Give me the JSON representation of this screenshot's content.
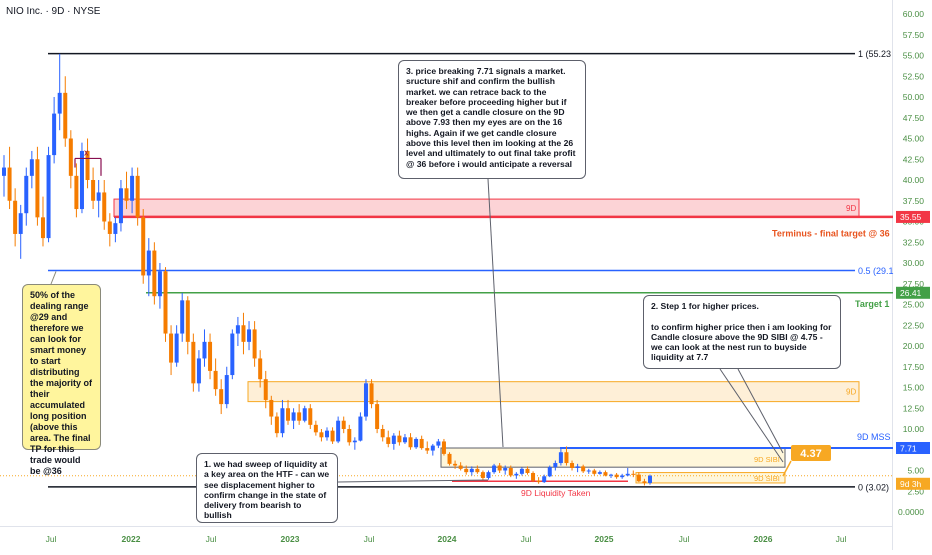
{
  "symbol": "NIO Inc. · 9D · NYSE",
  "colors": {
    "up": "#2962ff",
    "down": "#f57c00",
    "fvg_red": "#f23645",
    "fvg_orange": "#f7a823",
    "target_green": "#43a047",
    "blue_level": "#2962ff",
    "mss_blue": "#2962ff",
    "price_badge": "#f7a823"
  },
  "axis": {
    "price_ticks": [
      "60.00",
      "57.50",
      "55.00",
      "52.50",
      "50.00",
      "47.50",
      "45.00",
      "42.50",
      "40.00",
      "37.50",
      "35.00",
      "32.50",
      "30.00",
      "27.50",
      "25.00",
      "22.50",
      "20.00",
      "17.50",
      "15.00",
      "12.50",
      "10.00",
      "7.50",
      "5.00",
      "2.50",
      "0.0000"
    ],
    "time_ticks": [
      "Jul",
      "2022",
      "Jul",
      "2023",
      "Jul",
      "2024",
      "Jul",
      "2025",
      "Jul",
      "2026",
      "Jul"
    ]
  },
  "levels": {
    "fib_1": "1 (55.23",
    "fib_05": "0.5 (29.1",
    "fib_0": "0 (3.02)",
    "terminus_label": "Terminus - final target @ 36",
    "terminus_price": "35.55",
    "target1_label": "Target 1",
    "target1_price": "26.41",
    "mss_label": "9D MSS",
    "mss_price": "7.71",
    "current_price_badge": "4.37",
    "current_price_scale": "9d 3h",
    "fvg_red_label": "9D",
    "fvg_orange_label": "9D",
    "sibi_label_1": "9D SIBI",
    "sibi_label_2": "9D SIBI",
    "liquidity_label": "9D Liquidity Taken",
    "x_marker": "x"
  },
  "notes": {
    "note1": "1. we had sweep of liquidity at a key area on the HTF - can we see displacement higher to confirm change in the state of delivery from bearish to bullish",
    "note2": "2. Step 1 for higher prices.\n\nto confirm higher price then i am looking for Candle closure above the 9D SIBI @ 4.75 - we can look at the nest run to buyside liquidity at 7.7",
    "note3": "3. price breaking 7.71 signals a market. sructure shif and confirm the bullish market. we can retrace back to the breaker before proceeding higher but if we then get a candle closure on the 9D above 7.93 then my eyes are on the 16 highs. Again if we get candle closure above this level then im looking at the 26 level and ultimately to out final take profit @ 36 before i would anticipate a reversal",
    "note_yellow": "50% of the dealing range @29 and therefore we can look for smart money to start distributing the majority of their accumulated long position (above this area. The final TP for this trade would be @36"
  },
  "chart_data": {
    "type": "candlestick",
    "title": "NIO Inc. · 9D · NYSE",
    "ylim": [
      -1.5,
      61.5
    ],
    "y_ticks": [
      60,
      57.5,
      55,
      52.5,
      50,
      47.5,
      45,
      42.5,
      40,
      37.5,
      35,
      32.5,
      30,
      27.5,
      25,
      22.5,
      20,
      17.5,
      15,
      12.5,
      10,
      7.5,
      5,
      2.5,
      0
    ],
    "x_ticks": [
      "Jul",
      "2022",
      "Jul",
      "2023",
      "Jul",
      "2024",
      "Jul",
      "2025",
      "Jul",
      "2026",
      "Jul"
    ],
    "candles": [
      {
        "o": 40.5,
        "h": 43,
        "l": 38,
        "c": 41.5
      },
      {
        "o": 41.5,
        "h": 44,
        "l": 36.5,
        "c": 37.5
      },
      {
        "o": 37.5,
        "h": 39,
        "l": 32,
        "c": 33.5
      },
      {
        "o": 33.5,
        "h": 37,
        "l": 30.5,
        "c": 36
      },
      {
        "o": 36,
        "h": 41.5,
        "l": 34.5,
        "c": 40.5
      },
      {
        "o": 40.5,
        "h": 43.5,
        "l": 39,
        "c": 42.5
      },
      {
        "o": 42.5,
        "h": 44,
        "l": 34.5,
        "c": 35.5
      },
      {
        "o": 35.5,
        "h": 38,
        "l": 32,
        "c": 33
      },
      {
        "o": 33,
        "h": 44,
        "l": 32.5,
        "c": 43
      },
      {
        "o": 43,
        "h": 50,
        "l": 42,
        "c": 48
      },
      {
        "o": 48,
        "h": 55.2,
        "l": 46,
        "c": 50.5
      },
      {
        "o": 50.5,
        "h": 52.5,
        "l": 44,
        "c": 45
      },
      {
        "o": 45,
        "h": 46,
        "l": 39,
        "c": 40.5
      },
      {
        "o": 40.5,
        "h": 42,
        "l": 35.5,
        "c": 36.5
      },
      {
        "o": 36.5,
        "h": 44.5,
        "l": 36,
        "c": 43.5
      },
      {
        "o": 43.5,
        "h": 45,
        "l": 39,
        "c": 40
      },
      {
        "o": 40,
        "h": 41.5,
        "l": 36.5,
        "c": 37.5
      },
      {
        "o": 37.5,
        "h": 40,
        "l": 35.5,
        "c": 38.5
      },
      {
        "o": 38.5,
        "h": 40,
        "l": 34,
        "c": 35
      },
      {
        "o": 35,
        "h": 36,
        "l": 32,
        "c": 33.5
      },
      {
        "o": 33.5,
        "h": 35.5,
        "l": 32.5,
        "c": 34.8
      },
      {
        "o": 34.8,
        "h": 40,
        "l": 33.8,
        "c": 39
      },
      {
        "o": 39,
        "h": 41,
        "l": 36.5,
        "c": 37.5
      },
      {
        "o": 37.5,
        "h": 41.5,
        "l": 36,
        "c": 40.5
      },
      {
        "o": 40.5,
        "h": 41.5,
        "l": 34.5,
        "c": 35.5
      },
      {
        "o": 35.5,
        "h": 36.5,
        "l": 27.5,
        "c": 28.5
      },
      {
        "o": 28.5,
        "h": 33,
        "l": 26,
        "c": 31.5
      },
      {
        "o": 31.5,
        "h": 32.5,
        "l": 25,
        "c": 26
      },
      {
        "o": 26,
        "h": 30,
        "l": 24.5,
        "c": 29
      },
      {
        "o": 29,
        "h": 29.5,
        "l": 20.5,
        "c": 21.5
      },
      {
        "o": 21.5,
        "h": 22.5,
        "l": 16.5,
        "c": 18
      },
      {
        "o": 18,
        "h": 22.5,
        "l": 17.5,
        "c": 21.5
      },
      {
        "o": 21.5,
        "h": 26.4,
        "l": 20.5,
        "c": 25.5
      },
      {
        "o": 25.5,
        "h": 26,
        "l": 19,
        "c": 20.5
      },
      {
        "o": 20.5,
        "h": 21.5,
        "l": 14.5,
        "c": 15.5
      },
      {
        "o": 15.5,
        "h": 19.5,
        "l": 14.5,
        "c": 18.5
      },
      {
        "o": 18.5,
        "h": 22,
        "l": 17.5,
        "c": 20.5
      },
      {
        "o": 20.5,
        "h": 21.5,
        "l": 16,
        "c": 17
      },
      {
        "o": 17,
        "h": 18.5,
        "l": 14,
        "c": 14.8
      },
      {
        "o": 14.8,
        "h": 16,
        "l": 11.8,
        "c": 13
      },
      {
        "o": 13,
        "h": 17.5,
        "l": 12.5,
        "c": 16.5
      },
      {
        "o": 16.5,
        "h": 22,
        "l": 16,
        "c": 21.5
      },
      {
        "o": 21.5,
        "h": 23.5,
        "l": 20,
        "c": 22.5
      },
      {
        "o": 22.5,
        "h": 24,
        "l": 19,
        "c": 20.5
      },
      {
        "o": 20.5,
        "h": 23,
        "l": 19.5,
        "c": 22
      },
      {
        "o": 22,
        "h": 23,
        "l": 17.5,
        "c": 18.5
      },
      {
        "o": 18.5,
        "h": 19.5,
        "l": 15,
        "c": 16
      },
      {
        "o": 16,
        "h": 17,
        "l": 12.5,
        "c": 13.5
      },
      {
        "o": 13.5,
        "h": 14,
        "l": 10.5,
        "c": 11.5
      },
      {
        "o": 11.5,
        "h": 12,
        "l": 9,
        "c": 9.5
      },
      {
        "o": 9.5,
        "h": 13.5,
        "l": 9,
        "c": 12.5
      },
      {
        "o": 12.5,
        "h": 13.5,
        "l": 10.5,
        "c": 11
      },
      {
        "o": 11,
        "h": 12.5,
        "l": 10,
        "c": 12
      },
      {
        "o": 12,
        "h": 13,
        "l": 10.5,
        "c": 11
      },
      {
        "o": 11,
        "h": 12.8,
        "l": 10.8,
        "c": 12.5
      },
      {
        "o": 12.5,
        "h": 13,
        "l": 10,
        "c": 10.5
      },
      {
        "o": 10.5,
        "h": 11,
        "l": 9.2,
        "c": 9.6
      },
      {
        "o": 9.6,
        "h": 10,
        "l": 8.5,
        "c": 9
      },
      {
        "o": 9,
        "h": 10.2,
        "l": 8.6,
        "c": 9.8
      },
      {
        "o": 9.8,
        "h": 10.2,
        "l": 8.2,
        "c": 8.5
      },
      {
        "o": 8.5,
        "h": 11.5,
        "l": 8.3,
        "c": 11
      },
      {
        "o": 11,
        "h": 11.5,
        "l": 9.5,
        "c": 10
      },
      {
        "o": 10,
        "h": 10.5,
        "l": 8,
        "c": 8.4
      },
      {
        "o": 8.4,
        "h": 9,
        "l": 7.5,
        "c": 8.6
      },
      {
        "o": 8.6,
        "h": 12,
        "l": 8.5,
        "c": 11.5
      },
      {
        "o": 11.5,
        "h": 16,
        "l": 11,
        "c": 15.5
      },
      {
        "o": 15.5,
        "h": 16,
        "l": 12.5,
        "c": 13
      },
      {
        "o": 13,
        "h": 13.5,
        "l": 9.5,
        "c": 10
      },
      {
        "o": 10,
        "h": 10.5,
        "l": 8.5,
        "c": 9
      },
      {
        "o": 9,
        "h": 9.8,
        "l": 7.8,
        "c": 8.2
      },
      {
        "o": 8.2,
        "h": 9.5,
        "l": 7.5,
        "c": 9.2
      },
      {
        "o": 9.2,
        "h": 9.8,
        "l": 8,
        "c": 8.4
      },
      {
        "o": 8.4,
        "h": 9.4,
        "l": 8.2,
        "c": 9
      },
      {
        "o": 9,
        "h": 9.5,
        "l": 7.5,
        "c": 7.8
      },
      {
        "o": 7.8,
        "h": 9,
        "l": 7.6,
        "c": 8.8
      },
      {
        "o": 8.8,
        "h": 9.2,
        "l": 7.5,
        "c": 7.7
      },
      {
        "o": 7.7,
        "h": 8.5,
        "l": 7,
        "c": 7.4
      },
      {
        "o": 7.4,
        "h": 8.2,
        "l": 6.8,
        "c": 8
      },
      {
        "o": 8,
        "h": 8.8,
        "l": 7.7,
        "c": 8.5
      },
      {
        "o": 8.5,
        "h": 8.8,
        "l": 6.8,
        "c": 7
      },
      {
        "o": 7,
        "h": 7.2,
        "l": 5.6,
        "c": 5.8
      },
      {
        "o": 5.8,
        "h": 6.2,
        "l": 5.2,
        "c": 5.6
      },
      {
        "o": 5.6,
        "h": 6,
        "l": 5,
        "c": 5.2
      },
      {
        "o": 5.2,
        "h": 5.6,
        "l": 4.5,
        "c": 4.8
      },
      {
        "o": 4.8,
        "h": 5.5,
        "l": 4.4,
        "c": 5.2
      },
      {
        "o": 5.2,
        "h": 5.6,
        "l": 4.6,
        "c": 4.8
      },
      {
        "o": 4.8,
        "h": 5,
        "l": 3.8,
        "c": 4.1
      },
      {
        "o": 4.1,
        "h": 5,
        "l": 3.9,
        "c": 4.8
      },
      {
        "o": 4.8,
        "h": 5.8,
        "l": 4.6,
        "c": 5.6
      },
      {
        "o": 5.6,
        "h": 5.9,
        "l": 4.7,
        "c": 5
      },
      {
        "o": 5,
        "h": 5.6,
        "l": 4.5,
        "c": 5.3
      },
      {
        "o": 5.3,
        "h": 5.6,
        "l": 4.2,
        "c": 4.4
      },
      {
        "o": 4.4,
        "h": 4.8,
        "l": 4,
        "c": 4.6
      },
      {
        "o": 4.6,
        "h": 5.4,
        "l": 4.4,
        "c": 5.2
      },
      {
        "o": 5.2,
        "h": 5.5,
        "l": 4.5,
        "c": 4.7
      },
      {
        "o": 4.7,
        "h": 4.9,
        "l": 3.6,
        "c": 3.8
      },
      {
        "o": 3.8,
        "h": 4.2,
        "l": 3.4,
        "c": 3.6
      },
      {
        "o": 3.6,
        "h": 4.5,
        "l": 3.5,
        "c": 4.3
      },
      {
        "o": 4.3,
        "h": 5.6,
        "l": 4.2,
        "c": 5.4
      },
      {
        "o": 5.4,
        "h": 6.2,
        "l": 5,
        "c": 5.9
      },
      {
        "o": 5.9,
        "h": 7.6,
        "l": 5.6,
        "c": 7.2
      },
      {
        "o": 7.2,
        "h": 7.9,
        "l": 5.6,
        "c": 5.9
      },
      {
        "o": 5.9,
        "h": 6.2,
        "l": 5,
        "c": 5.3
      },
      {
        "o": 5.3,
        "h": 5.8,
        "l": 4.8,
        "c": 5.5
      },
      {
        "o": 5.5,
        "h": 5.7,
        "l": 4.7,
        "c": 4.9
      },
      {
        "o": 4.9,
        "h": 5.2,
        "l": 4.6,
        "c": 5
      },
      {
        "o": 5,
        "h": 5.2,
        "l": 4.4,
        "c": 4.6
      },
      {
        "o": 4.6,
        "h": 5,
        "l": 4.5,
        "c": 4.8
      },
      {
        "o": 4.8,
        "h": 5,
        "l": 4.3,
        "c": 4.4
      },
      {
        "o": 4.4,
        "h": 4.6,
        "l": 4.1,
        "c": 4.5
      },
      {
        "o": 4.5,
        "h": 4.7,
        "l": 4,
        "c": 4.2
      },
      {
        "o": 4.2,
        "h": 4.6,
        "l": 4,
        "c": 4.4
      },
      {
        "o": 4.4,
        "h": 5.3,
        "l": 4.3,
        "c": 4.6
      },
      {
        "o": 4.6,
        "h": 5,
        "l": 4.2,
        "c": 4.5
      },
      {
        "o": 4.5,
        "h": 4.8,
        "l": 3.6,
        "c": 3.7
      },
      {
        "o": 3.7,
        "h": 4,
        "l": 3.2,
        "c": 3.5
      },
      {
        "o": 3.5,
        "h": 4.5,
        "l": 3.3,
        "c": 4.37
      }
    ]
  }
}
